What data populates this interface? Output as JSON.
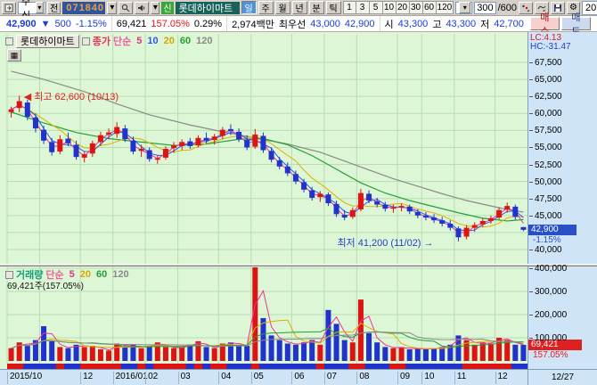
{
  "toolbar": {
    "mode": "주식",
    "jeon": "전",
    "code": "071840",
    "new_badge": "신",
    "stock_name": "롯데하이마트",
    "timeframes": [
      "일",
      "주",
      "월",
      "년",
      "분",
      "틱"
    ],
    "active_timeframe": "일",
    "periods": [
      "1",
      "3",
      "5",
      "10",
      "20",
      "30",
      "60",
      "120"
    ],
    "bars_value": "300",
    "bars_total": "/600",
    "date": "2016/12/27"
  },
  "info": {
    "price": "42,900",
    "arrow": "▼",
    "change": "500",
    "change_pct": "-1.15%",
    "volume": "69,421",
    "volume_rate": "157.05%",
    "turnover": "0.29%",
    "amount": "2,974백만",
    "best_label": "최우선",
    "best_ask": "43,000",
    "best_bid": "42,900",
    "open_label": "시",
    "open": "43,300",
    "high_label": "고",
    "high": "43,300",
    "low_label": "저",
    "low": "42,700",
    "buy": "매수",
    "sell": "매도"
  },
  "icons": {
    "gear": "⚙",
    "calendar": "▦",
    "grid": "▦",
    "dropdown": "▾",
    "left_arrow": "◀",
    "right_arrow": "→"
  },
  "price_header": {
    "tab": "롯데하이마트",
    "name": "종가",
    "type": "단순",
    "periods": [
      "5",
      "10",
      "20",
      "60",
      "120"
    ]
  },
  "volume_header": {
    "name": "거래량",
    "type": "단순",
    "periods": [
      "5",
      "20",
      "60",
      "120"
    ],
    "value": "69,421주(157.05%)"
  },
  "colors": {
    "up": "#dd1414",
    "down": "#2233cc",
    "ma5": "#f0309c",
    "ma10": "#3355ee",
    "ma20": "#e0b000",
    "ma60": "#22a036",
    "ma120": "#8a8a8a",
    "bg": "#ddf6d5",
    "grid": "#b9dcb4",
    "axis_bg": "#cfe4f6"
  },
  "chart_data": {
    "type": "candlestick+volume",
    "symbol": "롯데하이마트",
    "sampling_note": "weekly approximation read from daily chart 2015/10 - 2016/12/27",
    "y_ticks": [
      67500,
      65000,
      62500,
      60000,
      57500,
      55000,
      52500,
      50000,
      47500,
      45000,
      40000
    ],
    "price_range": [
      40000,
      67500
    ],
    "vol_ticks": [
      400000,
      300000,
      200000,
      100000
    ],
    "x_labels": [
      {
        "i": 0,
        "t": "2015/10"
      },
      {
        "i": 4,
        "t": ""
      },
      {
        "i": 9,
        "t": "12"
      },
      {
        "i": 13,
        "t": "2016/01"
      },
      {
        "i": 17,
        "t": "02"
      },
      {
        "i": 21,
        "t": "03"
      },
      {
        "i": 26,
        "t": "04"
      },
      {
        "i": 30,
        "t": "05"
      },
      {
        "i": 35,
        "t": "06"
      },
      {
        "i": 39,
        "t": "07"
      },
      {
        "i": 43,
        "t": "08"
      },
      {
        "i": 48,
        "t": "09"
      },
      {
        "i": 51,
        "t": "10"
      },
      {
        "i": 55,
        "t": "11"
      },
      {
        "i": 60,
        "t": "12"
      }
    ],
    "candles": [
      [
        60200,
        61000,
        59400,
        60600,
        55000
      ],
      [
        60800,
        62600,
        60200,
        61800,
        80000
      ],
      [
        61600,
        62000,
        59000,
        59500,
        65000
      ],
      [
        59400,
        60000,
        57200,
        57800,
        90000
      ],
      [
        57600,
        58200,
        55500,
        56000,
        150000
      ],
      [
        55800,
        56400,
        53800,
        54300,
        85000
      ],
      [
        54400,
        56800,
        54000,
        56200,
        60000
      ],
      [
        56300,
        57200,
        55200,
        55600,
        55000
      ],
      [
        55400,
        56000,
        53200,
        53600,
        70000
      ],
      [
        53500,
        54400,
        52800,
        54000,
        60000
      ],
      [
        54100,
        56000,
        53600,
        55600,
        65000
      ],
      [
        55800,
        57300,
        55200,
        56800,
        50000
      ],
      [
        56900,
        57800,
        56200,
        57200,
        45000
      ],
      [
        57000,
        58700,
        56400,
        58000,
        75000
      ],
      [
        57800,
        58300,
        55800,
        56200,
        60000
      ],
      [
        56000,
        56600,
        54000,
        54400,
        70000
      ],
      [
        54500,
        55400,
        53600,
        54800,
        55000
      ],
      [
        54600,
        55000,
        52900,
        53300,
        65000
      ],
      [
        53200,
        53800,
        52600,
        53400,
        80000
      ],
      [
        53500,
        55200,
        53200,
        54800,
        60000
      ],
      [
        54900,
        55800,
        54200,
        55300,
        55000
      ],
      [
        55200,
        56200,
        54600,
        55800,
        60000
      ],
      [
        55900,
        56400,
        54800,
        55200,
        70000
      ],
      [
        55300,
        56800,
        55000,
        56400,
        85000
      ],
      [
        56400,
        57200,
        55600,
        56000,
        60000
      ],
      [
        56100,
        57000,
        55400,
        56600,
        55000
      ],
      [
        56700,
        58000,
        56200,
        57600,
        75000
      ],
      [
        57700,
        58400,
        56800,
        57400,
        80000
      ],
      [
        57300,
        57800,
        55800,
        56200,
        70000
      ],
      [
        56100,
        56800,
        54600,
        55000,
        65000
      ],
      [
        55100,
        57700,
        54800,
        56900,
        420000
      ],
      [
        56700,
        57200,
        54200,
        54600,
        185000
      ],
      [
        54500,
        55000,
        52800,
        53200,
        110000
      ],
      [
        53100,
        53600,
        51800,
        52200,
        90000
      ],
      [
        52200,
        52800,
        50800,
        51200,
        75000
      ],
      [
        51100,
        51600,
        49600,
        50000,
        70000
      ],
      [
        49900,
        50400,
        48400,
        48800,
        80000
      ],
      [
        48700,
        49200,
        47200,
        47600,
        90000
      ],
      [
        47700,
        48600,
        47000,
        48200,
        70000
      ],
      [
        48100,
        48400,
        46400,
        46800,
        220000
      ],
      [
        46700,
        47200,
        44800,
        45200,
        160000
      ],
      [
        45100,
        45800,
        44300,
        44700,
        90000
      ],
      [
        44800,
        46200,
        44500,
        45800,
        80000
      ],
      [
        45900,
        48900,
        45600,
        48300,
        265000
      ],
      [
        48200,
        48700,
        46800,
        47200,
        120000
      ],
      [
        47100,
        47600,
        46200,
        46600,
        80000
      ],
      [
        46600,
        47000,
        45600,
        46000,
        60000
      ],
      [
        46000,
        46600,
        45400,
        46200,
        55000
      ],
      [
        46200,
        46800,
        45600,
        46400,
        60000
      ],
      [
        46300,
        46600,
        45200,
        45600,
        50000
      ],
      [
        45500,
        45900,
        44600,
        45000,
        55000
      ],
      [
        45000,
        45500,
        44300,
        44700,
        50000
      ],
      [
        44700,
        45200,
        43900,
        44300,
        55000
      ],
      [
        44300,
        44800,
        43400,
        43800,
        60000
      ],
      [
        43800,
        44300,
        42800,
        43200,
        70000
      ],
      [
        43100,
        43400,
        41200,
        41800,
        110000
      ],
      [
        41900,
        43600,
        41500,
        43200,
        90000
      ],
      [
        43200,
        44000,
        42600,
        43600,
        70000
      ],
      [
        43700,
        44600,
        43300,
        44200,
        80000
      ],
      [
        44200,
        45000,
        43800,
        44600,
        75000
      ],
      [
        44700,
        46200,
        44400,
        45800,
        100000
      ],
      [
        45900,
        46900,
        45400,
        46400,
        90000
      ],
      [
        46300,
        46600,
        44400,
        44800,
        70000
      ],
      [
        43300,
        43300,
        42700,
        42900,
        69421
      ]
    ],
    "ma60_anchors": [
      [
        0,
        60200
      ],
      [
        4,
        58600
      ],
      [
        8,
        57200
      ],
      [
        12,
        56300
      ],
      [
        16,
        55800
      ],
      [
        20,
        55300
      ],
      [
        24,
        55500
      ],
      [
        28,
        56200
      ],
      [
        31,
        56300
      ],
      [
        34,
        55400
      ],
      [
        37,
        53800
      ],
      [
        40,
        51800
      ],
      [
        43,
        49800
      ],
      [
        46,
        48300
      ],
      [
        49,
        47200
      ],
      [
        52,
        46300
      ],
      [
        55,
        45400
      ],
      [
        58,
        44600
      ],
      [
        61,
        44200
      ],
      [
        63,
        44400
      ]
    ],
    "ma120_anchors": [
      [
        0,
        66200
      ],
      [
        4,
        65000
      ],
      [
        9,
        63200
      ],
      [
        13,
        61400
      ],
      [
        17,
        59800
      ],
      [
        22,
        58300
      ],
      [
        26,
        57300
      ],
      [
        30,
        56400
      ],
      [
        34,
        55500
      ],
      [
        38,
        54300
      ],
      [
        41,
        53000
      ],
      [
        44,
        51700
      ],
      [
        47,
        50400
      ],
      [
        50,
        49300
      ],
      [
        53,
        48200
      ],
      [
        56,
        47200
      ],
      [
        59,
        46400
      ],
      [
        61,
        45900
      ],
      [
        63,
        45500
      ]
    ],
    "annotations": {
      "high": {
        "text": "최고 62,600 (10/13)",
        "index": 1,
        "price": 62600
      },
      "low": {
        "text": "최저 41,200 (11/02)",
        "index": 55,
        "price": 41200
      }
    },
    "markers": {
      "last_price": "42,900",
      "last_price_value": 42900,
      "last_change": "-1.15%",
      "last_volume": "69,421",
      "last_volume_value": 69421,
      "last_volume_rate": "157.05%"
    },
    "lc_hc": {
      "lc": "LC:4.13",
      "hc": "HC:-31.47"
    },
    "corner_date": "12/27"
  }
}
